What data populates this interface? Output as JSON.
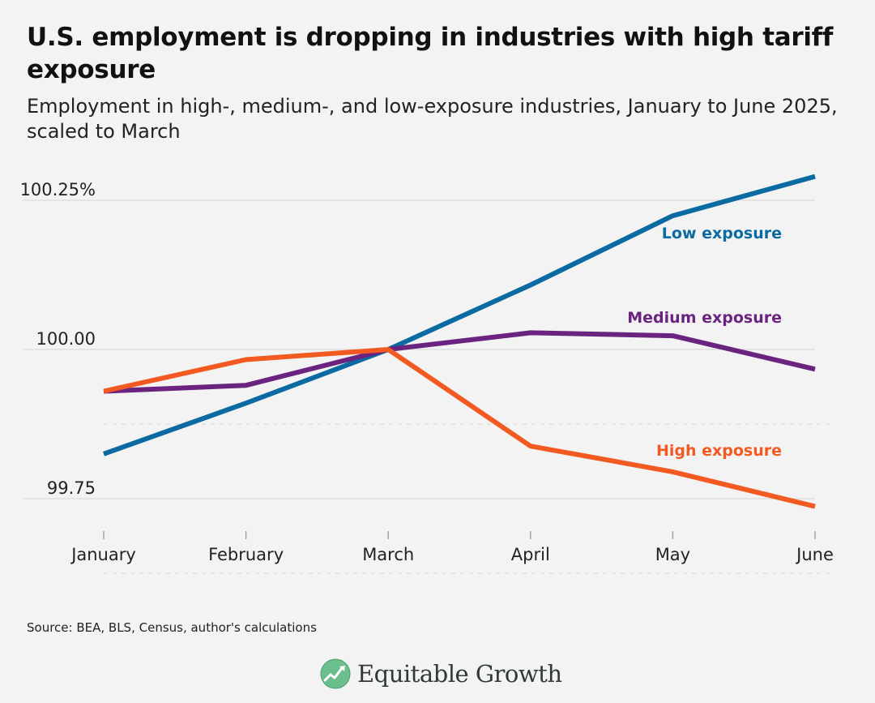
{
  "chart_data": {
    "type": "line",
    "title": "U.S. employment is dropping in industries with high tariff exposure",
    "subtitle": "Employment in high-, medium-, and low-exposure industries, January to June 2025, scaled to March",
    "categories": [
      "January",
      "February",
      "March",
      "April",
      "May",
      "June"
    ],
    "ylim": [
      99.73,
      100.3
    ],
    "yticks": [
      {
        "value": 100.25,
        "label": "100.25%"
      },
      {
        "value": 100.0,
        "label": "100.00"
      },
      {
        "value": 99.75,
        "label": "99.75"
      }
    ],
    "minor_gridlines": [
      99.875
    ],
    "series": [
      {
        "name": "Low exposure",
        "color": "#0a6aa1",
        "label_at": 4,
        "values": [
          99.825,
          99.91,
          100.0,
          100.108,
          100.224,
          100.29
        ]
      },
      {
        "name": "Medium exposure",
        "color": "#6b2380",
        "label_at": 4,
        "values": [
          99.93,
          99.94,
          100.0,
          100.028,
          100.023,
          99.967
        ]
      },
      {
        "name": "High exposure",
        "color": "#f25a22",
        "label_at": 4,
        "values": [
          99.93,
          99.983,
          100.0,
          99.838,
          99.795,
          99.737
        ]
      }
    ],
    "xlabel": "",
    "ylabel": ""
  },
  "footer": {
    "source": "Source: BEA, BLS, Census, author's calculations",
    "brand": "Equitable Growth"
  },
  "icons": {
    "logo": "equitable-growth-logo-icon"
  },
  "colors": {
    "background": "#f3f3f3",
    "grid": "#dcdcdc"
  }
}
